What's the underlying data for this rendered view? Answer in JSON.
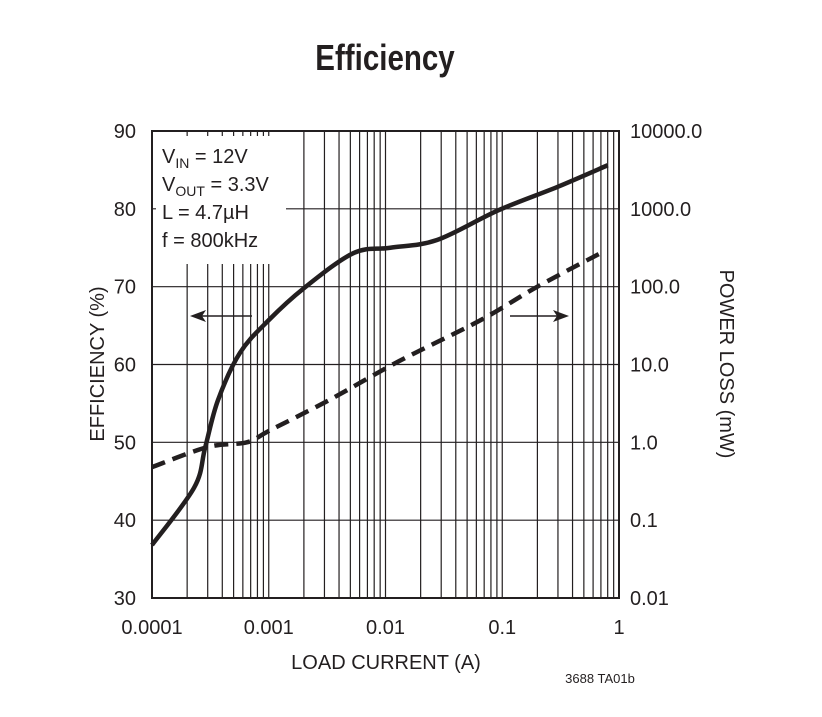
{
  "chart_data": {
    "type": "line",
    "title": "Efficiency",
    "xlabel": "LOAD CURRENT (A)",
    "ylabel": "EFFICIENCY (%)",
    "y2label": "POWER LOSS (mW)",
    "xscale": "log",
    "xlim": [
      0.0001,
      1
    ],
    "ylim": [
      30,
      90
    ],
    "y2scale": "log",
    "y2lim": [
      0.01,
      10000
    ],
    "grid": true,
    "x_ticks": [
      "0.0001",
      "0.001",
      "0.01",
      "0.1",
      "1"
    ],
    "y_ticks": [
      "90",
      "80",
      "70",
      "60",
      "50",
      "40",
      "30"
    ],
    "y2_ticks": [
      "10000.0",
      "1000.0",
      "100.0",
      "10.0",
      "1.0",
      "0.1",
      "0.01"
    ],
    "annotations": {
      "vin": [
        "V",
        "IN",
        " = 12V"
      ],
      "vout": [
        "V",
        "OUT",
        " = 3.3V"
      ],
      "l": "L = 4.7µH",
      "f": "f = 800kHz"
    },
    "footnote": "3688 TA01b",
    "series": [
      {
        "axis": "left",
        "style": "solid",
        "x": [
          0.0001,
          0.00023,
          0.000285,
          0.000367,
          0.000567,
          0.001,
          0.002,
          0.0053,
          0.011,
          0.0276,
          0.092,
          0.295,
          0.8
        ],
        "y": [
          36.8,
          44.2,
          49.3,
          55.4,
          61.5,
          65.7,
          69.8,
          74.3,
          75.0,
          76.0,
          79.8,
          82.8,
          85.6
        ]
      },
      {
        "axis": "right",
        "style": "dashed",
        "x": [
          0.0001,
          0.0003,
          0.00065,
          0.001,
          0.0033,
          0.013,
          0.065,
          0.2,
          0.73
        ],
        "y": [
          0.48,
          0.87,
          1.0,
          1.4,
          3.5,
          11,
          37,
          100,
          280
        ]
      }
    ],
    "colors": {
      "ink": "#231f20",
      "grid": "#231f20"
    }
  }
}
